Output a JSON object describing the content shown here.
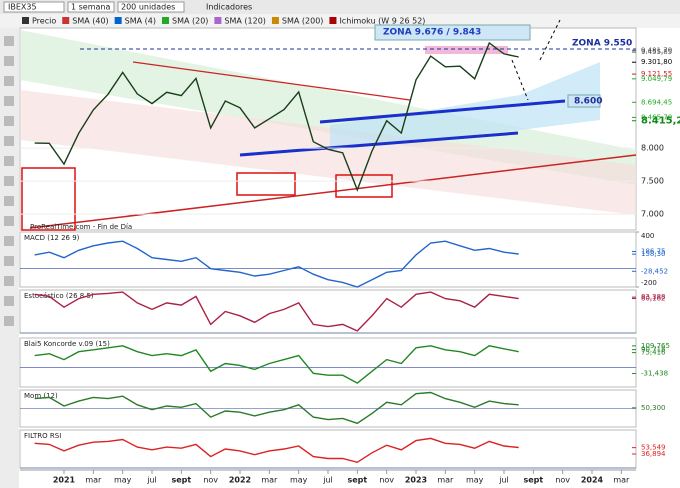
{
  "toolbar": {
    "symbol": "IBEX35",
    "period": "1 semana",
    "units": "200 unidades",
    "indicators": "Indicadores"
  },
  "legend": [
    "Precio",
    "SMA (40)",
    "SMA (4)",
    "SMA (20)",
    "SMA (120)",
    "SMA (200)",
    "Ichimoku (W 9 26 52)"
  ],
  "source": "ProRealTime.com - Fin de Día",
  "chart_data": {
    "type": "line",
    "x": [
      "2020-11",
      "2020-12",
      "2021-01",
      "2021-02",
      "2021-03",
      "2021-04",
      "2021-05",
      "2021-06",
      "2021-07",
      "2021-08",
      "2021-09",
      "2021-10",
      "2021-11",
      "2021-12",
      "2022-01",
      "2022-02",
      "2022-03",
      "2022-04",
      "2022-05",
      "2022-06",
      "2022-07",
      "2022-08",
      "2022-09",
      "2022-10",
      "2022-11",
      "2022-12",
      "2023-01",
      "2023-02",
      "2023-03",
      "2023-04",
      "2023-05",
      "2023-06",
      "2023-07",
      "2023-08"
    ],
    "series": [
      {
        "name": "Precio",
        "color": "#1a3d1a",
        "values": [
          8077,
          8074,
          7758,
          8225,
          8580,
          8815,
          9148,
          8821,
          8675,
          8846,
          8796,
          9057,
          8306,
          8714,
          8611,
          8306,
          8445,
          8584,
          8852,
          8098,
          7982,
          7930,
          7367,
          7956,
          8416,
          8229,
          9034,
          9394,
          9232,
          9241,
          9050,
          9593,
          9428,
          9380
        ]
      }
    ],
    "xlim": [
      "2020-10",
      "2024-04"
    ],
    "xticks": [
      {
        "value": "2021-01",
        "label": "2021"
      },
      {
        "value": "2021-03",
        "label": "mar"
      },
      {
        "value": "2021-05",
        "label": "may"
      },
      {
        "value": "2021-07",
        "label": "jul"
      },
      {
        "value": "2021-09",
        "label": "sept"
      },
      {
        "value": "2021-11",
        "label": "nov"
      },
      {
        "value": "2022-01",
        "label": "2022"
      },
      {
        "value": "2022-03",
        "label": "mar"
      },
      {
        "value": "2022-05",
        "label": "may"
      },
      {
        "value": "2022-07",
        "label": "jul"
      },
      {
        "value": "2022-09",
        "label": "sept"
      },
      {
        "value": "2022-11",
        "label": "nov"
      },
      {
        "value": "2023-01",
        "label": "2023"
      },
      {
        "value": "2023-03",
        "label": "mar"
      },
      {
        "value": "2023-05",
        "label": "may"
      },
      {
        "value": "2023-07",
        "label": "jul"
      },
      {
        "value": "2023-09",
        "label": "sept"
      },
      {
        "value": "2023-11",
        "label": "nov"
      },
      {
        "value": "2024-01",
        "label": "2024"
      },
      {
        "value": "2024-03",
        "label": "mar"
      }
    ],
    "ylim": [
      6760,
      9820
    ],
    "yticks": [
      {
        "value": 7000,
        "label": "7.000"
      },
      {
        "value": 7500,
        "label": "7.500"
      },
      {
        "value": 8000,
        "label": "8.000"
      }
    ],
    "price_labels": [
      {
        "value": 9481.7,
        "label": "9.481,70",
        "color": "#555555"
      },
      {
        "value": 9455.85,
        "label": "9.455,85",
        "color": "#555555"
      },
      {
        "value": 9301.8,
        "label": "9.301,80",
        "color": "#000000"
      },
      {
        "value": 9121.55,
        "label": "9.121,55",
        "color": "#cc2222"
      },
      {
        "value": 9049.79,
        "label": "9.049,79",
        "color": "#22aa22"
      },
      {
        "value": 8694.45,
        "label": "8.694,45",
        "color": "#22aa22"
      },
      {
        "value": 8465.7,
        "label": "8.465,70",
        "color": "#22aa22"
      },
      {
        "value": 8415.25,
        "label": "8.415,25",
        "color": "#11881a"
      }
    ],
    "annotations": {
      "zone_top": "ZONA 9.676 / 9.843",
      "zone_mid": "ZONA 9.550",
      "support": "8.600"
    }
  },
  "panels": [
    {
      "label": "MACD (12 26 9)",
      "ylim": [
        -200,
        400
      ],
      "yticks": [
        400,
        -200
      ],
      "color": "#2266cc",
      "value_labels": [
        {
          "value": 186.75,
          "label": "186,75"
        },
        {
          "value": 158.3,
          "label": "158,30"
        },
        {
          "value": -28.452,
          "label": "-28,452"
        }
      ],
      "values": [
        150,
        180,
        120,
        200,
        250,
        280,
        300,
        220,
        120,
        100,
        80,
        120,
        0,
        -20,
        -40,
        -80,
        -60,
        -20,
        20,
        -60,
        -120,
        -150,
        -200,
        -120,
        -40,
        -20,
        150,
        280,
        300,
        250,
        200,
        220,
        180,
        160
      ]
    },
    {
      "label": "Estocástico (26 8 5)",
      "ylim": [
        0,
        100
      ],
      "yticks": [],
      "color": "#aa2244",
      "value_labels": [
        {
          "value": 83.388,
          "label": "83,388"
        },
        {
          "value": 80.162,
          "label": "80,162"
        }
      ],
      "values": [
        90,
        85,
        60,
        80,
        90,
        92,
        95,
        70,
        55,
        70,
        65,
        85,
        20,
        50,
        40,
        25,
        45,
        55,
        70,
        20,
        15,
        20,
        5,
        40,
        80,
        60,
        90,
        95,
        80,
        75,
        60,
        90,
        85,
        80
      ]
    },
    {
      "label": "Blai5 Koncorde v.09 (15)",
      "ylim": [
        -100,
        150
      ],
      "yticks": [],
      "color": "#228822",
      "value_labels": [
        {
          "value": 109.765,
          "label": "109,765"
        },
        {
          "value": 90.718,
          "label": "90,718"
        },
        {
          "value": 75.416,
          "label": "75,416"
        },
        {
          "value": -31.438,
          "label": "-31,438"
        }
      ],
      "values": [
        60,
        70,
        40,
        80,
        90,
        100,
        110,
        80,
        60,
        70,
        60,
        90,
        -20,
        20,
        10,
        -10,
        20,
        40,
        60,
        -30,
        -40,
        -40,
        -80,
        -20,
        40,
        20,
        100,
        110,
        90,
        80,
        60,
        110,
        95,
        80
      ]
    },
    {
      "label": "Mom (12)",
      "ylim": [
        -1500,
        1500
      ],
      "yticks": [],
      "color": "#2a7a2a",
      "value_labels": [
        {
          "value": 50.3,
          "label": "50,300"
        }
      ],
      "values": [
        800,
        900,
        200,
        600,
        900,
        800,
        1000,
        300,
        -100,
        200,
        100,
        400,
        -700,
        -200,
        -300,
        -600,
        -300,
        -100,
        300,
        -700,
        -900,
        -800,
        -1200,
        -400,
        500,
        300,
        1200,
        1300,
        800,
        500,
        100,
        600,
        400,
        300
      ]
    },
    {
      "label": "FILTRO RSI",
      "ylim": [
        0,
        100
      ],
      "yticks": [],
      "color": "#dd2222",
      "value_labels": [
        {
          "value": 53.549,
          "label": "53,549"
        },
        {
          "value": 36.894,
          "label": "36,894"
        }
      ],
      "values": [
        65,
        62,
        45,
        60,
        68,
        70,
        75,
        55,
        48,
        55,
        52,
        62,
        30,
        50,
        45,
        35,
        45,
        50,
        58,
        30,
        25,
        25,
        15,
        40,
        60,
        48,
        72,
        78,
        65,
        62,
        52,
        70,
        58,
        54
      ]
    }
  ]
}
